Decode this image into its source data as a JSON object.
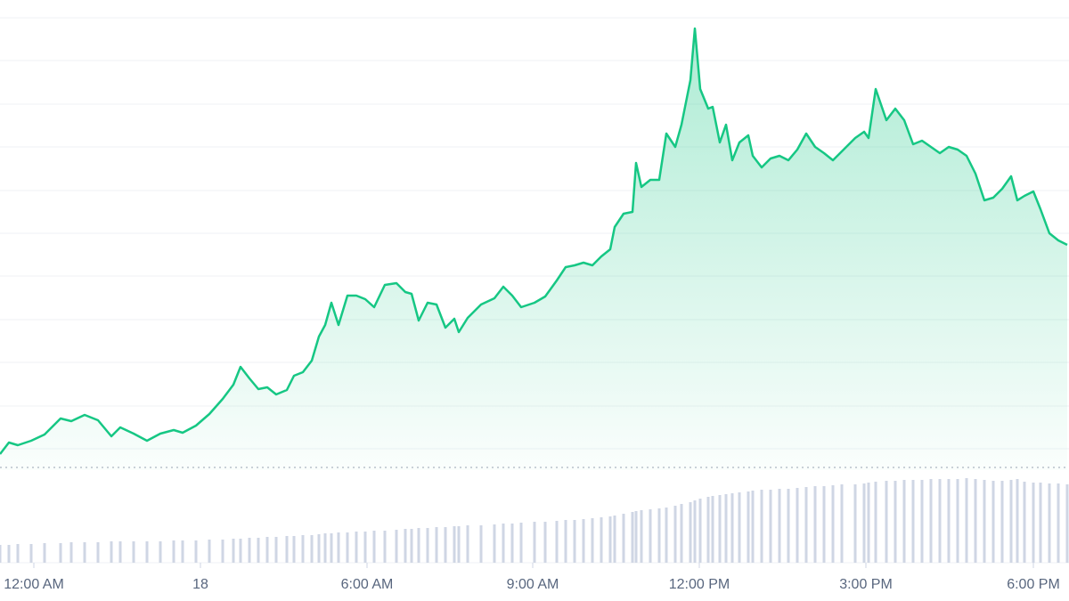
{
  "chart_data": {
    "type": "line",
    "x": [
      0,
      10,
      20,
      35,
      50,
      68,
      80,
      95,
      110,
      125,
      135,
      150,
      165,
      180,
      195,
      205,
      220,
      235,
      250,
      262,
      270,
      280,
      290,
      300,
      310,
      322,
      330,
      340,
      350,
      358,
      365,
      372,
      380,
      390,
      400,
      410,
      420,
      432,
      445,
      455,
      462,
      470,
      480,
      490,
      500,
      510,
      515,
      525,
      540,
      555,
      565,
      575,
      585,
      600,
      612,
      625,
      635,
      645,
      655,
      665,
      675,
      685,
      690,
      700,
      710,
      714,
      720,
      730,
      740,
      748,
      758,
      765,
      775,
      780,
      786,
      795,
      800,
      808,
      815,
      822,
      830,
      840,
      845,
      855,
      865,
      875,
      885,
      895,
      905,
      915,
      925,
      935,
      945,
      960,
      970,
      975,
      983,
      995,
      1005,
      1015,
      1025,
      1035,
      1045,
      1055,
      1065,
      1075,
      1085,
      1095,
      1105,
      1115,
      1125,
      1135,
      1142,
      1150,
      1160,
      1168,
      1178,
      1188,
      1198
    ],
    "series": [
      {
        "color": "#16c784",
        "values": [
          18,
          31,
          28,
          33,
          40,
          58,
          55,
          62,
          56,
          38,
          48,
          41,
          33,
          41,
          45,
          42,
          50,
          63,
          80,
          96,
          116,
          103,
          91,
          93,
          85,
          90,
          106,
          110,
          123,
          150,
          163,
          188,
          163,
          196,
          196,
          192,
          183,
          208,
          210,
          200,
          198,
          168,
          188,
          186,
          160,
          170,
          155,
          171,
          186,
          193,
          206,
          196,
          183,
          188,
          195,
          213,
          228,
          230,
          233,
          230,
          240,
          248,
          273,
          288,
          290,
          345,
          318,
          326,
          326,
          378,
          363,
          388,
          438,
          496,
          428,
          406,
          408,
          368,
          388,
          348,
          368,
          376,
          353,
          340,
          350,
          353,
          348,
          360,
          378,
          363,
          356,
          348,
          358,
          373,
          380,
          373,
          428,
          393,
          406,
          393,
          366,
          370,
          363,
          356,
          363,
          360,
          353,
          333,
          303,
          306,
          316,
          330,
          303,
          308,
          313,
          293,
          266,
          258,
          253
        ]
      },
      {
        "color": "#cfd6e4",
        "axis": "y2",
        "values": [
          20,
          20,
          21,
          21,
          22,
          22,
          23,
          23,
          23,
          24,
          24,
          24,
          24,
          24,
          25,
          25,
          25,
          26,
          26,
          27,
          27,
          28,
          28,
          29,
          29,
          30,
          30,
          31,
          31,
          32,
          33,
          33,
          34,
          34,
          35,
          35,
          36,
          36,
          37,
          38,
          38,
          39,
          39,
          40,
          40,
          41,
          41,
          42,
          42,
          43,
          44,
          44,
          45,
          46,
          46,
          47,
          48,
          48,
          49,
          50,
          51,
          52,
          53,
          55,
          57,
          58,
          59,
          60,
          61,
          62,
          64,
          66,
          68,
          70,
          72,
          74,
          75,
          76,
          77,
          78,
          79,
          80,
          81,
          82,
          82,
          83,
          83,
          84,
          85,
          86,
          86,
          87,
          88,
          88,
          89,
          90,
          91,
          92,
          92,
          93,
          93,
          93,
          94,
          94,
          94,
          94,
          95,
          94,
          93,
          92,
          92,
          93,
          94,
          91,
          90,
          90,
          89,
          89,
          88
        ]
      }
    ],
    "xlim": [
      0,
      1200
    ],
    "xticks": [
      {
        "value": 38,
        "label": "12:00 AM"
      },
      {
        "value": 225,
        "label": "18"
      },
      {
        "value": 412,
        "label": "6:00 AM"
      },
      {
        "value": 598,
        "label": "9:00 AM"
      },
      {
        "value": 785,
        "label": "12:00 PM"
      },
      {
        "value": 972,
        "label": "3:00 PM"
      },
      {
        "value": 1160,
        "label": "6:00 PM"
      }
    ],
    "ylim": [
      0,
      508
    ],
    "yticks": [
      24,
      72,
      121,
      169,
      218,
      266,
      314,
      363,
      411,
      460,
      508
    ],
    "y2lim": [
      0,
      100
    ],
    "grid": true
  }
}
